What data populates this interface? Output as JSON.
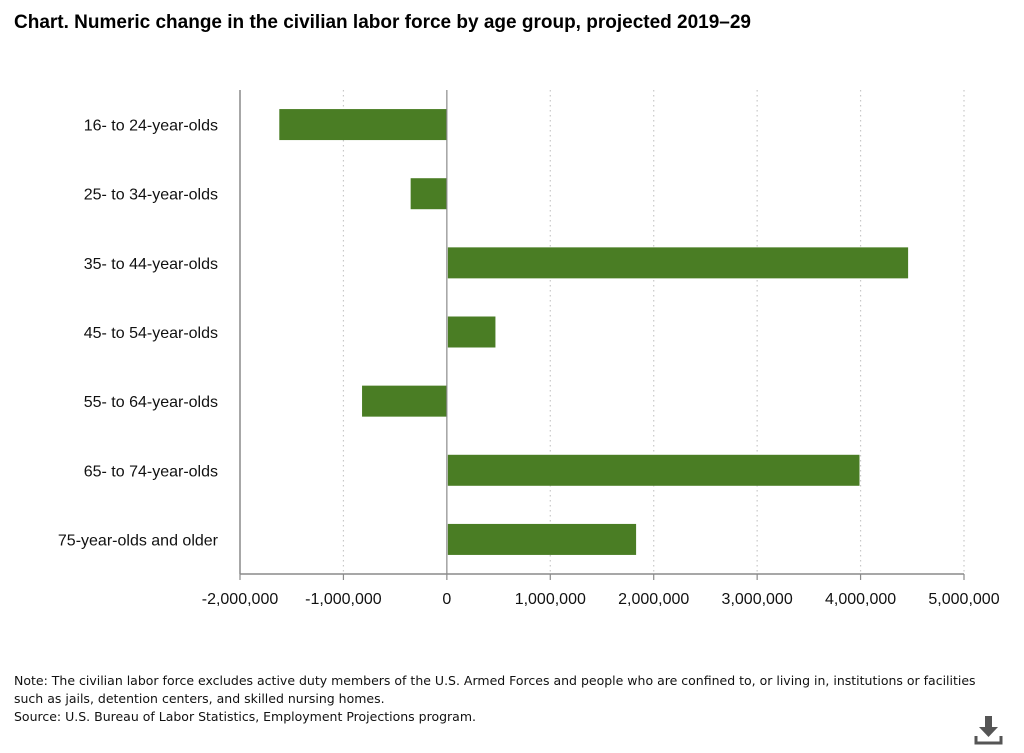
{
  "title": "Chart. Numeric change in the civilian labor force by age group, projected 2019–29",
  "chart_data": {
    "type": "bar",
    "orientation": "horizontal",
    "categories": [
      "16- to 24-year-olds",
      "25- to 34-year-olds",
      "35- to 44-year-olds",
      "45- to 54-year-olds",
      "55- to 64-year-olds",
      "65- to 74-year-olds",
      "75-year-olds and older"
    ],
    "values": [
      -1620000,
      -350000,
      4450000,
      460000,
      -820000,
      3980000,
      1820000
    ],
    "xlim": [
      -2000000,
      5000000
    ],
    "ticks": [
      -2000000,
      -1000000,
      0,
      1000000,
      2000000,
      3000000,
      4000000,
      5000000
    ],
    "tick_labels": [
      "-2,000,000",
      "-1,000,000",
      "0",
      "1,000,000",
      "2,000,000",
      "3,000,000",
      "4,000,000",
      "5,000,000"
    ],
    "grid": "vertical dotted",
    "bar_color": "#4a7d24",
    "gridline_color": "#c8c8c8",
    "axis_color": "#8a8a8a"
  },
  "notes": {
    "note": "Note: The civilian labor force excludes active duty members of the U.S. Armed Forces and people who are confined to, or living in, institutions or facilities such as jails, detention centers, and skilled nursing homes.",
    "source": "Source: U.S. Bureau of Labor Statistics, Employment Projections program."
  },
  "download_icon": "download-icon"
}
